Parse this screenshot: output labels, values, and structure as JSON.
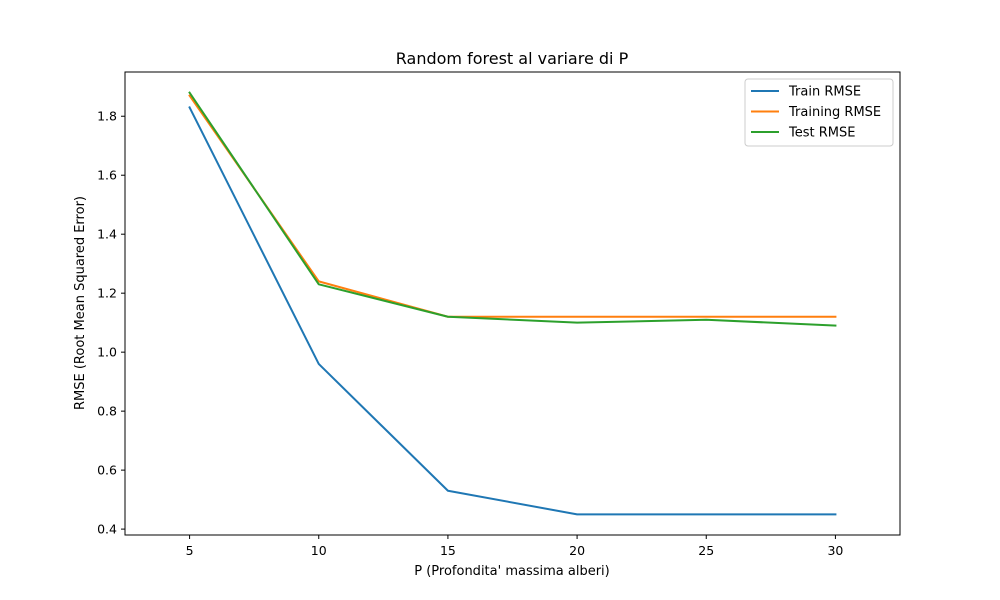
{
  "chart_data": {
    "type": "line",
    "title": "Random forest al variare di P",
    "xlabel": "P (Profondita' massima alberi)",
    "ylabel": "RMSE (Root Mean Squared Error)",
    "x": [
      5,
      10,
      15,
      20,
      25,
      30
    ],
    "x_ticks": [
      "5",
      "10",
      "15",
      "20",
      "25",
      "30"
    ],
    "y_ticks": [
      "0.4",
      "0.6",
      "0.8",
      "1.0",
      "1.2",
      "1.4",
      "1.6",
      "1.8"
    ],
    "xlim": [
      2.5,
      32.5
    ],
    "ylim": [
      0.38,
      1.95
    ],
    "grid": false,
    "legend_position": "top-right",
    "series": [
      {
        "name": "Train RMSE",
        "color": "#1f77b4",
        "values": [
          1.83,
          0.96,
          0.53,
          0.45,
          0.45,
          0.45
        ]
      },
      {
        "name": "Training RMSE",
        "color": "#ff7f0e",
        "values": [
          1.87,
          1.24,
          1.12,
          1.12,
          1.12,
          1.12
        ]
      },
      {
        "name": "Test RMSE",
        "color": "#2ca02c",
        "values": [
          1.88,
          1.23,
          1.12,
          1.1,
          1.11,
          1.09
        ]
      }
    ]
  }
}
